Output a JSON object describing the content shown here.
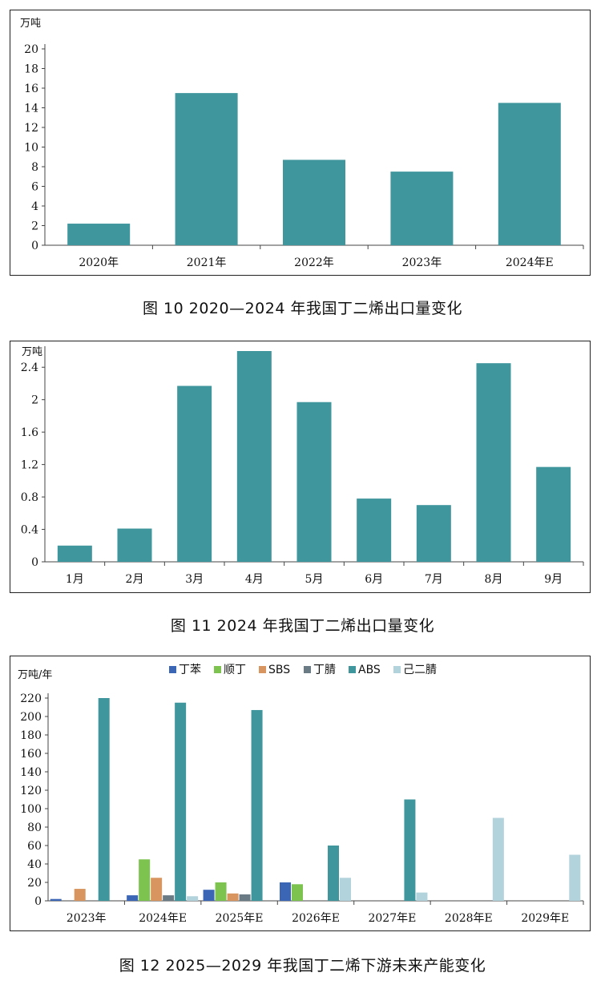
{
  "captions": {
    "fig10": "图 10 2020—2024 年我国丁二烯出口量变化",
    "fig11": "图 11 2024 年我国丁二烯出口量变化",
    "fig12": "图 12 2025—2029 年我国丁二烯下游未来产能变化"
  },
  "chart_data": [
    {
      "type": "bar",
      "unit": "万吨",
      "categories": [
        "2020年",
        "2021年",
        "2022年",
        "2023年",
        "2024年E"
      ],
      "values": [
        2.2,
        15.5,
        8.7,
        7.5,
        14.5
      ],
      "ylim": [
        0,
        20
      ],
      "yticks": [
        0,
        2,
        4,
        6,
        8,
        10,
        12,
        14,
        16,
        18,
        20
      ],
      "color": "#3f969d",
      "grid": false
    },
    {
      "type": "bar",
      "unit": "万吨",
      "categories": [
        "1月",
        "2月",
        "3月",
        "4月",
        "5月",
        "6月",
        "7月",
        "8月",
        "9月"
      ],
      "values": [
        0.2,
        0.41,
        2.17,
        2.6,
        1.97,
        0.78,
        0.7,
        2.45,
        1.17
      ],
      "ylim": [
        0,
        2.6
      ],
      "yticks": [
        0,
        0.4,
        0.8,
        1.2,
        1.6,
        2,
        2.4
      ],
      "color": "#3f969d",
      "grid": false
    },
    {
      "type": "bar",
      "unit": "万吨/年",
      "categories": [
        "2023年",
        "2024年E",
        "2025年E",
        "2026年E",
        "2027年E",
        "2028年E",
        "2029年E"
      ],
      "series": [
        {
          "name": "丁苯",
          "color": "#3b66b5",
          "values": [
            2,
            6,
            12,
            20,
            0,
            0,
            0
          ]
        },
        {
          "name": "顺丁",
          "color": "#7dc34f",
          "values": [
            0,
            45,
            20,
            18,
            0,
            0,
            0
          ]
        },
        {
          "name": "SBS",
          "color": "#d9955f",
          "values": [
            13,
            25,
            8,
            0,
            0,
            0,
            0
          ]
        },
        {
          "name": "丁腈",
          "color": "#6b7b86",
          "values": [
            0,
            6,
            7,
            0,
            0,
            0,
            0
          ]
        },
        {
          "name": "ABS",
          "color": "#3f969d",
          "values": [
            220,
            215,
            207,
            60,
            110,
            0,
            0
          ]
        },
        {
          "name": "己二腈",
          "color": "#b3d3dc",
          "values": [
            0,
            5,
            0,
            25,
            9,
            90,
            50
          ]
        }
      ],
      "ylim": [
        0,
        220
      ],
      "yticks": [
        0,
        20,
        40,
        60,
        80,
        100,
        120,
        140,
        160,
        180,
        200,
        220
      ],
      "legend": "top",
      "grid": false
    }
  ]
}
